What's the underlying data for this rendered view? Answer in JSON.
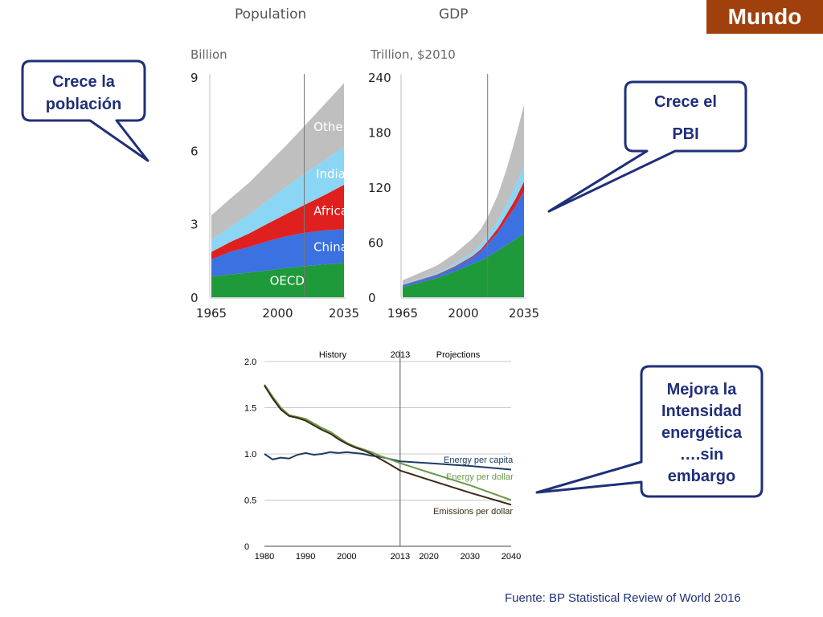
{
  "slide": {
    "badge": "Mundo",
    "source": "Fuente: BP Statistical Review of World 2016",
    "colors": {
      "badge": "#a0410d",
      "callout_border": "#1f2f7a",
      "callout_text": "#1f2f7a"
    }
  },
  "callouts": [
    {
      "lines": [
        "Crece la",
        "población"
      ]
    },
    {
      "lines": [
        "Crece el",
        "PBI"
      ]
    },
    {
      "lines": [
        "Mejora la",
        "Intensidad",
        "energética",
        "….sin",
        "embargo"
      ]
    }
  ],
  "chart_data": [
    {
      "type": "area",
      "title": "Population",
      "ylabel": "Billion",
      "ylim": [
        0,
        9
      ],
      "yticks": [
        "0",
        "3",
        "6",
        "9"
      ],
      "xticks": [
        "1965",
        "2000",
        "2035"
      ],
      "xlim": [
        1965,
        2035
      ],
      "marker_year": 2014,
      "x": [
        1965,
        1975,
        1985,
        1995,
        2005,
        2014,
        2025,
        2035
      ],
      "series": [
        {
          "name": "OECD",
          "color": "#1f9a3a",
          "values": [
            0.85,
            0.93,
            1.01,
            1.1,
            1.2,
            1.27,
            1.34,
            1.4
          ]
        },
        {
          "name": "China",
          "color": "#3b71e0",
          "values": [
            0.7,
            0.93,
            1.05,
            1.2,
            1.3,
            1.36,
            1.4,
            1.38
          ]
        },
        {
          "name": "Africa",
          "color": "#e01f1f",
          "values": [
            0.3,
            0.4,
            0.55,
            0.72,
            0.92,
            1.14,
            1.45,
            1.82
          ]
        },
        {
          "name": "India",
          "color": "#8ad6f4",
          "values": [
            0.5,
            0.62,
            0.78,
            0.95,
            1.13,
            1.27,
            1.42,
            1.55
          ]
        },
        {
          "name": "Other",
          "color": "#bfbfbf",
          "values": [
            1.0,
            1.15,
            1.3,
            1.5,
            1.7,
            1.95,
            2.3,
            2.6
          ]
        }
      ]
    },
    {
      "type": "area",
      "title": "GDP",
      "ylabel": "Trillion, $2010",
      "ylim": [
        0,
        240
      ],
      "yticks": [
        "0",
        "60",
        "120",
        "180",
        "240"
      ],
      "xticks": [
        "1965",
        "2000",
        "2035"
      ],
      "xlim": [
        1965,
        2035
      ],
      "marker_year": 2014,
      "x": [
        1965,
        1975,
        1985,
        1995,
        2005,
        2010,
        2014,
        2020,
        2025,
        2030,
        2035
      ],
      "series": [
        {
          "name": "",
          "color": "#1f9a3a",
          "values": [
            11,
            16,
            21,
            28,
            36,
            40,
            44,
            51,
            57,
            63,
            70
          ]
        },
        {
          "name": "",
          "color": "#3b71e0",
          "values": [
            2,
            2.5,
            3,
            4.5,
            7,
            10,
            14,
            20,
            28,
            36,
            46
          ]
        },
        {
          "name": "",
          "color": "#e01f1f",
          "values": [
            0.5,
            0.6,
            0.8,
            1,
            1.5,
            2,
            3,
            4.5,
            6,
            8,
            10
          ]
        },
        {
          "name": "",
          "color": "#8ad6f4",
          "values": [
            1,
            1.5,
            2,
            3,
            4,
            5,
            6,
            8.5,
            11,
            14,
            17
          ]
        },
        {
          "name": "",
          "color": "#bfbfbf",
          "values": [
            4,
            6,
            8,
            11,
            15,
            17,
            20,
            28,
            38,
            52,
            67
          ]
        }
      ]
    },
    {
      "type": "line",
      "ylim": [
        0,
        2.0
      ],
      "yticks": [
        "0",
        "0.5",
        "1.0",
        "1.5",
        "2.0"
      ],
      "xlim": [
        1980,
        2040
      ],
      "xticks": [
        "1980",
        "1990",
        "2000",
        "2013",
        "2020",
        "2030",
        "2040"
      ],
      "marker_year": 2013,
      "annotations": [
        "History",
        "2013",
        "Projections"
      ],
      "grid": true,
      "series": [
        {
          "name": "Energy per capita",
          "color": "#1d3b63",
          "x": [
            1980,
            1982,
            1984,
            1986,
            1988,
            1990,
            1992,
            1994,
            1996,
            1998,
            2000,
            2002,
            2004,
            2006,
            2008,
            2010,
            2013,
            2020,
            2030,
            2040
          ],
          "values": [
            1.0,
            0.94,
            0.96,
            0.95,
            0.99,
            1.01,
            0.99,
            1.0,
            1.02,
            1.01,
            1.02,
            1.01,
            1.0,
            0.98,
            0.97,
            0.95,
            0.92,
            0.9,
            0.87,
            0.83
          ]
        },
        {
          "name": "Energy per dollar",
          "color": "#6a9a4a",
          "x": [
            1980,
            1982,
            1984,
            1986,
            1988,
            1990,
            1992,
            1994,
            1996,
            1998,
            2000,
            2002,
            2004,
            2006,
            2008,
            2010,
            2013,
            2020,
            2030,
            2040
          ],
          "values": [
            1.75,
            1.62,
            1.5,
            1.42,
            1.4,
            1.38,
            1.33,
            1.28,
            1.24,
            1.18,
            1.12,
            1.08,
            1.05,
            1.02,
            0.98,
            0.95,
            0.9,
            0.8,
            0.66,
            0.5
          ]
        },
        {
          "name": "Emissions per dollar",
          "color": "#3a2a14",
          "x": [
            1980,
            1982,
            1984,
            1986,
            1988,
            1990,
            1992,
            1994,
            1996,
            1998,
            2000,
            2002,
            2004,
            2006,
            2008,
            2010,
            2013,
            2020,
            2030,
            2040
          ],
          "values": [
            1.74,
            1.6,
            1.48,
            1.41,
            1.39,
            1.36,
            1.31,
            1.26,
            1.22,
            1.16,
            1.11,
            1.07,
            1.04,
            1.0,
            0.95,
            0.9,
            0.82,
            0.72,
            0.58,
            0.45
          ]
        }
      ]
    }
  ]
}
